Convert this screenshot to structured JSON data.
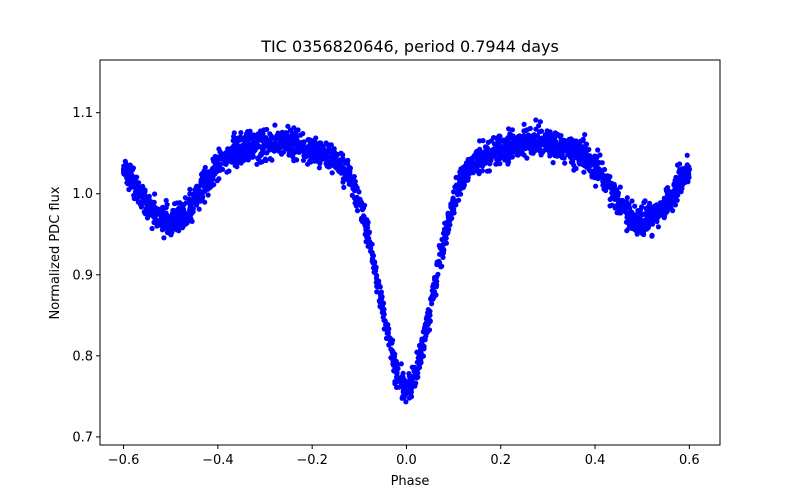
{
  "chart_data": {
    "type": "scatter",
    "title": "TIC 0356820646, period 0.7944 days",
    "xlabel": "Phase",
    "ylabel": "Normalized PDC flux",
    "xlim": [
      -0.65,
      0.665
    ],
    "ylim": [
      0.69,
      1.165
    ],
    "xticks": [
      -0.6,
      -0.4,
      -0.2,
      0.0,
      0.2,
      0.4,
      0.6
    ],
    "xtick_labels": [
      "−0.6",
      "−0.4",
      "−0.2",
      "0.0",
      "0.2",
      "0.4",
      "0.6"
    ],
    "yticks": [
      0.7,
      0.8,
      0.9,
      1.0,
      1.1
    ],
    "ytick_labels": [
      "0.7",
      "0.8",
      "0.9",
      "1.0",
      "1.1"
    ],
    "grid": false,
    "legend": "none",
    "marker_color": "#0000ff",
    "series": [
      {
        "marker": "circle",
        "x": [
          -0.6,
          -0.58,
          -0.56,
          -0.54,
          -0.52,
          -0.5,
          -0.48,
          -0.46,
          -0.44,
          -0.42,
          -0.4,
          -0.38,
          -0.36,
          -0.34,
          -0.32,
          -0.3,
          -0.28,
          -0.26,
          -0.24,
          -0.22,
          -0.2,
          -0.18,
          -0.16,
          -0.14,
          -0.12,
          -0.1,
          -0.09,
          -0.08,
          -0.07,
          -0.06,
          -0.05,
          -0.04,
          -0.03,
          -0.02,
          -0.01,
          0.0,
          0.01,
          0.02,
          0.03,
          0.04,
          0.05,
          0.06,
          0.07,
          0.08,
          0.09,
          0.1,
          0.12,
          0.14,
          0.16,
          0.18,
          0.2,
          0.22,
          0.24,
          0.26,
          0.28,
          0.3,
          0.32,
          0.34,
          0.36,
          0.38,
          0.4,
          0.42,
          0.44,
          0.46,
          0.48,
          0.5,
          0.52,
          0.54,
          0.56,
          0.58,
          0.6
        ],
        "y": [
          1.03,
          1.015,
          0.995,
          0.98,
          0.97,
          0.965,
          0.968,
          0.98,
          1.0,
          1.02,
          1.035,
          1.045,
          1.05,
          1.055,
          1.058,
          1.06,
          1.062,
          1.063,
          1.062,
          1.058,
          1.055,
          1.05,
          1.045,
          1.035,
          1.02,
          0.99,
          0.97,
          0.945,
          0.915,
          0.885,
          0.855,
          0.83,
          0.805,
          0.78,
          0.765,
          0.755,
          0.765,
          0.78,
          0.805,
          0.83,
          0.855,
          0.885,
          0.915,
          0.945,
          0.97,
          0.99,
          1.02,
          1.035,
          1.045,
          1.05,
          1.055,
          1.058,
          1.062,
          1.063,
          1.062,
          1.06,
          1.058,
          1.055,
          1.05,
          1.045,
          1.035,
          1.02,
          1.0,
          0.98,
          0.968,
          0.965,
          0.97,
          0.98,
          0.995,
          1.015,
          1.03
        ],
        "spread": [
          0.012,
          0.015,
          0.015,
          0.015,
          0.015,
          0.015,
          0.015,
          0.015,
          0.015,
          0.015,
          0.015,
          0.015,
          0.015,
          0.015,
          0.015,
          0.015,
          0.015,
          0.015,
          0.015,
          0.015,
          0.015,
          0.015,
          0.015,
          0.015,
          0.015,
          0.015,
          0.015,
          0.015,
          0.015,
          0.015,
          0.015,
          0.015,
          0.015,
          0.015,
          0.015,
          0.015,
          0.015,
          0.015,
          0.015,
          0.015,
          0.015,
          0.015,
          0.015,
          0.015,
          0.015,
          0.015,
          0.015,
          0.015,
          0.015,
          0.015,
          0.015,
          0.015,
          0.015,
          0.015,
          0.015,
          0.015,
          0.015,
          0.015,
          0.015,
          0.015,
          0.015,
          0.015,
          0.015,
          0.015,
          0.015,
          0.015,
          0.015,
          0.015,
          0.015,
          0.015,
          0.012
        ]
      }
    ]
  }
}
